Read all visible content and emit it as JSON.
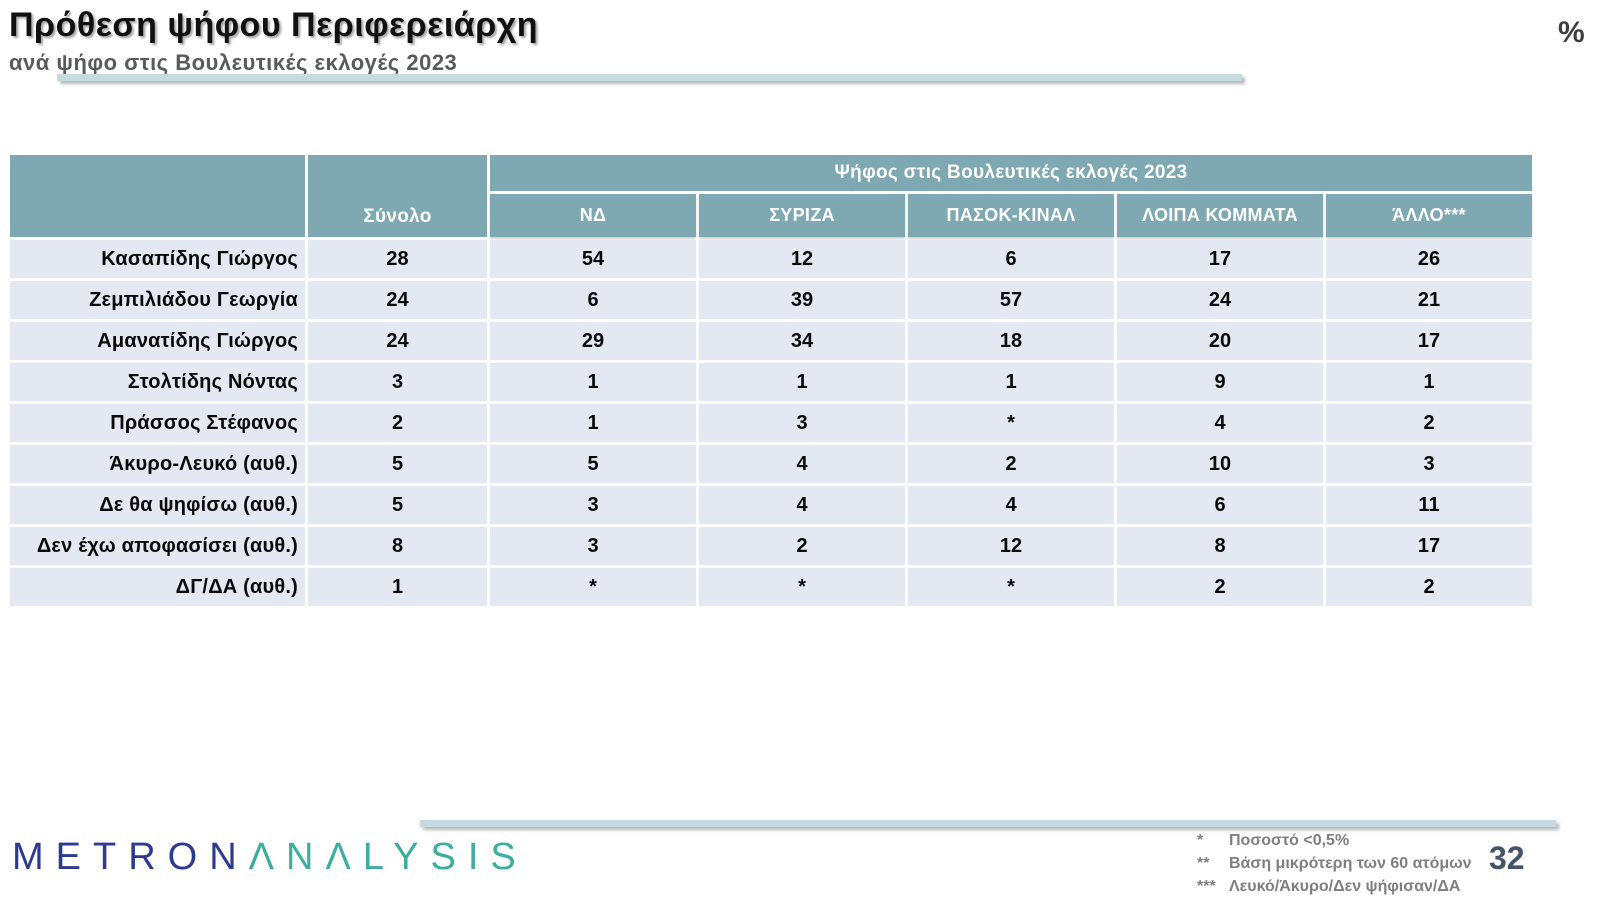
{
  "slide": {
    "title": "Πρόθεση ψήφου Περιφερειάρχη",
    "subtitle": "ανά ψήφο στις Βουλευτικές εκλογές 2023",
    "percent_symbol": "%",
    "page_number": "32"
  },
  "logo": {
    "metron": "METRON",
    "analysis": "ΛNΛLYSIS"
  },
  "footnotes": [
    {
      "marker": "*",
      "text": "Ποσοστό <0,5%"
    },
    {
      "marker": "**",
      "text": "Βάση μικρότερη των 60 ατόμων"
    },
    {
      "marker": "***",
      "text": "Λευκό/Άκυρο/Δεν ψήφισαν/ΔΑ"
    }
  ],
  "chart_data": {
    "type": "table",
    "title": "Πρόθεση ψήφου Περιφερειάρχη",
    "subtitle": "ανά ψήφο στις Βουλευτικές εκλογές 2023",
    "units": "%",
    "group_header": "Ψήφος στις Βουλευτικές εκλογές 2023",
    "total_column": "Σύνολο",
    "party_columns": [
      "ΝΔ",
      "ΣΥΡΙΖΑ",
      "ΠΑΣΟΚ-ΚΙΝΑΛ",
      "ΛΟΙΠΑ ΚΟΜΜΑΤΑ",
      "ΆΛΛΟ***"
    ],
    "rows": [
      {
        "label": "Κασαπίδης Γιώργος",
        "values": [
          "28",
          "54",
          "12",
          "6",
          "17",
          "26"
        ]
      },
      {
        "label": "Ζεμπιλιάδου Γεωργία",
        "values": [
          "24",
          "6",
          "39",
          "57",
          "24",
          "21"
        ]
      },
      {
        "label": "Αμανατίδης Γιώργος",
        "values": [
          "24",
          "29",
          "34",
          "18",
          "20",
          "17"
        ]
      },
      {
        "label": "Στολτίδης Νόντας",
        "values": [
          "3",
          "1",
          "1",
          "1",
          "9",
          "1"
        ]
      },
      {
        "label": "Πράσσος Στέφανος",
        "values": [
          "2",
          "1",
          "3",
          "*",
          "4",
          "2"
        ]
      },
      {
        "label": "Άκυρο-Λευκό (αυθ.)",
        "values": [
          "5",
          "5",
          "4",
          "2",
          "10",
          "3"
        ]
      },
      {
        "label": "Δε θα ψηφίσω (αυθ.)",
        "values": [
          "5",
          "3",
          "4",
          "4",
          "6",
          "11"
        ]
      },
      {
        "label": "Δεν έχω αποφασίσει (αυθ.)",
        "values": [
          "8",
          "3",
          "2",
          "12",
          "8",
          "17"
        ]
      },
      {
        "label": "ΔΓ/ΔΑ (αυθ.)",
        "values": [
          "1",
          "*",
          "*",
          "*",
          "2",
          "2"
        ]
      }
    ]
  },
  "colors": {
    "header_teal": "#7fa9b2",
    "row_background": "#e4e8f2",
    "rule_teal": "#c5dbe0",
    "logo_navy": "#2d3a8e",
    "logo_teal": "#3cae9e",
    "page_number": "#44546a",
    "footnote_gray": "#7f7f7f"
  }
}
